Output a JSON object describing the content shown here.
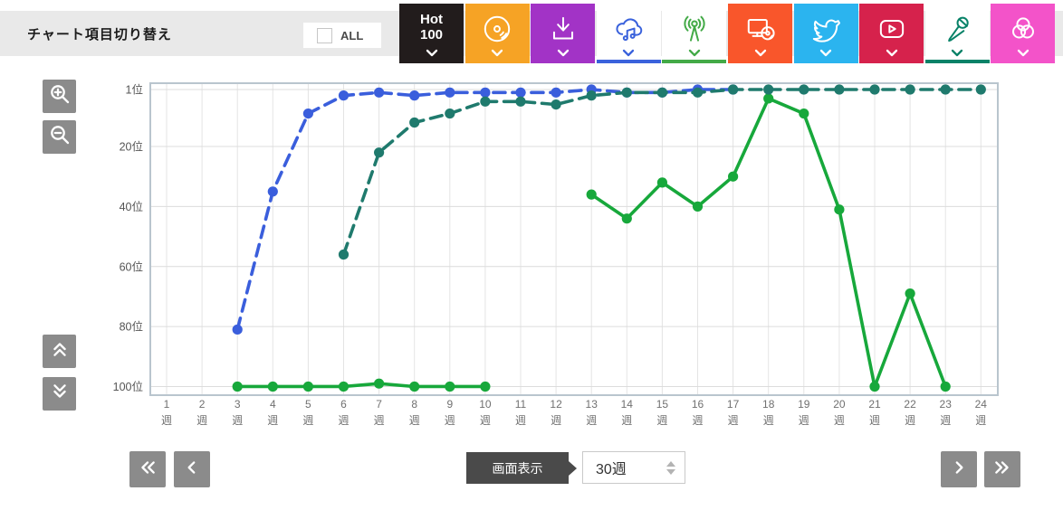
{
  "header": {
    "title": "チャート項目切り替え",
    "all_label": "ALL",
    "all_checked": false
  },
  "metric_buttons": [
    {
      "id": "hot100",
      "label_line1": "Hot",
      "label_line2": "100",
      "icon": "hot100-label",
      "bg": "#221c1c",
      "accent": "#ffffff",
      "active": false
    },
    {
      "id": "cd-sales",
      "icon": "cd-disc-icon",
      "bg": "#f6a325",
      "accent": "#ffffff",
      "active": false
    },
    {
      "id": "download",
      "icon": "download-icon",
      "bg": "#a233c6",
      "accent": "#ffffff",
      "active": false
    },
    {
      "id": "streaming",
      "icon": "cloud-music-icon",
      "bg": "#ffffff",
      "accent": "#3a62dc",
      "active": true
    },
    {
      "id": "radio",
      "icon": "radio-tower-icon",
      "bg": "#ffffff",
      "accent": "#43aa47",
      "active": true
    },
    {
      "id": "lookup",
      "icon": "pc-disc-icon",
      "bg": "#f9562b",
      "accent": "#ffffff",
      "active": false
    },
    {
      "id": "twitter",
      "icon": "twitter-bird-icon",
      "bg": "#2bb4ef",
      "accent": "#ffffff",
      "active": false
    },
    {
      "id": "video",
      "icon": "video-play-icon",
      "bg": "#d6224c",
      "accent": "#ffffff",
      "active": false
    },
    {
      "id": "karaoke",
      "icon": "microphone-icon",
      "bg": "#ffffff",
      "accent": "#088268",
      "active": true
    },
    {
      "id": "combine",
      "icon": "venn-circles-icon",
      "bg": "#f353c9",
      "accent": "#ffffff",
      "active": false
    }
  ],
  "chart_data": {
    "type": "line",
    "y_axis": {
      "inverted": true,
      "min_rank": 1,
      "max_rank": 100,
      "unit": "位"
    },
    "y_ticks": [
      {
        "rank": 1,
        "label": "1位"
      },
      {
        "rank": 20,
        "label": "20位"
      },
      {
        "rank": 40,
        "label": "40位"
      },
      {
        "rank": 60,
        "label": "60位"
      },
      {
        "rank": 80,
        "label": "80位"
      },
      {
        "rank": 100,
        "label": "100位"
      }
    ],
    "x_ticks": [
      1,
      2,
      3,
      4,
      5,
      6,
      7,
      8,
      9,
      10,
      11,
      12,
      13,
      14,
      15,
      16,
      17,
      18,
      19,
      20,
      21,
      22,
      23,
      24
    ],
    "x_unit_label": "週",
    "grid": true,
    "series": [
      {
        "name": "streaming",
        "color": "#3a5edc",
        "line_style": "dashed",
        "segments": [
          [
            [
              3,
              81
            ],
            [
              4,
              35
            ],
            [
              5,
              9
            ],
            [
              6,
              3
            ],
            [
              7,
              2
            ],
            [
              8,
              3
            ],
            [
              9,
              2
            ],
            [
              10,
              2
            ],
            [
              11,
              2
            ],
            [
              12,
              2
            ],
            [
              13,
              1
            ],
            [
              14,
              2
            ],
            [
              15,
              2
            ],
            [
              16,
              1
            ],
            [
              17,
              1
            ]
          ]
        ]
      },
      {
        "name": "radio",
        "color": "#17a83b",
        "line_style": "solid",
        "segments": [
          [
            [
              3,
              100
            ],
            [
              4,
              100
            ],
            [
              5,
              100
            ],
            [
              6,
              100
            ],
            [
              7,
              99
            ],
            [
              8,
              100
            ],
            [
              9,
              100
            ],
            [
              10,
              100
            ]
          ],
          [
            [
              13,
              36
            ],
            [
              14,
              44
            ],
            [
              15,
              32
            ],
            [
              16,
              40
            ],
            [
              17,
              30
            ],
            [
              18,
              4
            ],
            [
              19,
              9
            ],
            [
              20,
              41
            ],
            [
              21,
              100
            ],
            [
              22,
              69
            ],
            [
              23,
              100
            ]
          ]
        ]
      },
      {
        "name": "karaoke",
        "color": "#1f7a6d",
        "line_style": "dashed",
        "segments": [
          [
            [
              6,
              56
            ],
            [
              7,
              22
            ],
            [
              8,
              12
            ],
            [
              9,
              9
            ],
            [
              10,
              5
            ],
            [
              11,
              5
            ],
            [
              12,
              6
            ],
            [
              13,
              3
            ],
            [
              14,
              2
            ],
            [
              15,
              2
            ],
            [
              16,
              2
            ],
            [
              17,
              1
            ],
            [
              18,
              1
            ],
            [
              19,
              1
            ],
            [
              20,
              1
            ],
            [
              21,
              1
            ],
            [
              22,
              1
            ],
            [
              23,
              1
            ],
            [
              24,
              1
            ]
          ]
        ]
      }
    ]
  },
  "controls": {
    "left_toolbar": [
      {
        "icon": "zoom-in-icon"
      },
      {
        "icon": "zoom-out-icon"
      },
      {
        "icon": "scroll-up-icon"
      },
      {
        "icon": "scroll-down-icon"
      }
    ],
    "pager": {
      "first_icon": "double-chevron-left-icon",
      "prev_icon": "chevron-left-icon",
      "next_icon": "chevron-right-icon",
      "last_icon": "double-chevron-right-icon"
    },
    "display_button_label": "画面表示",
    "display_range_value": "30週"
  }
}
